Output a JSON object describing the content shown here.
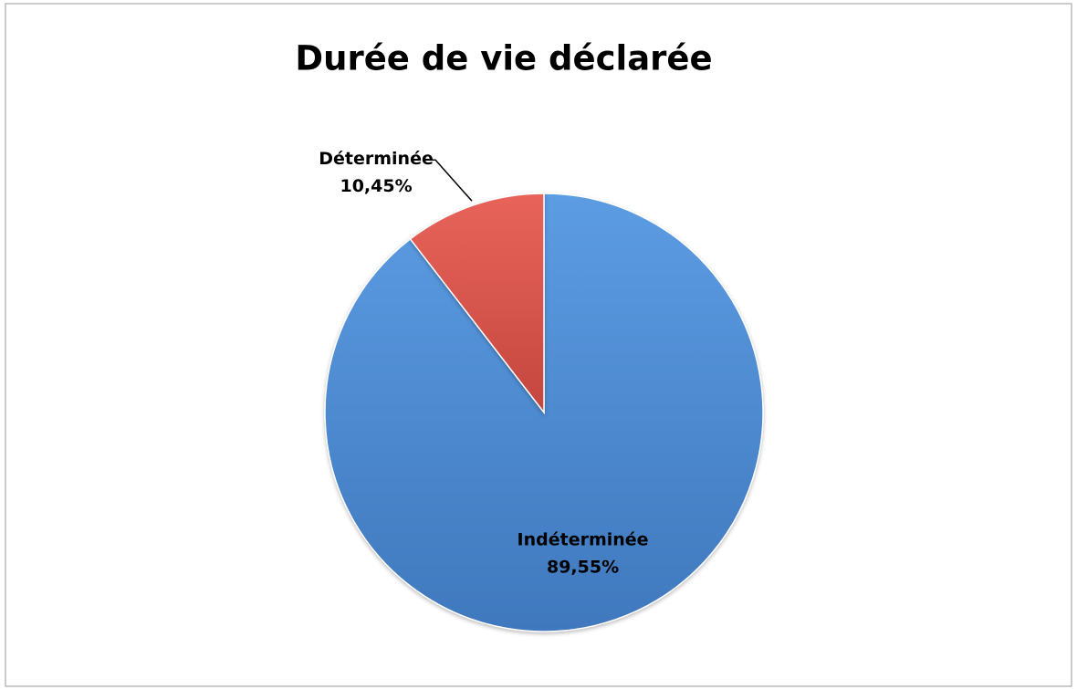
{
  "chart_data": {
    "type": "pie",
    "title": "Durée de vie déclarée",
    "categories": [
      "Indéterminée",
      "Déterminée"
    ],
    "values": [
      89.55,
      10.45
    ],
    "value_labels": [
      "89,55%",
      "10,45%"
    ],
    "colors": [
      "#4f8fd8",
      "#d9554b"
    ]
  }
}
